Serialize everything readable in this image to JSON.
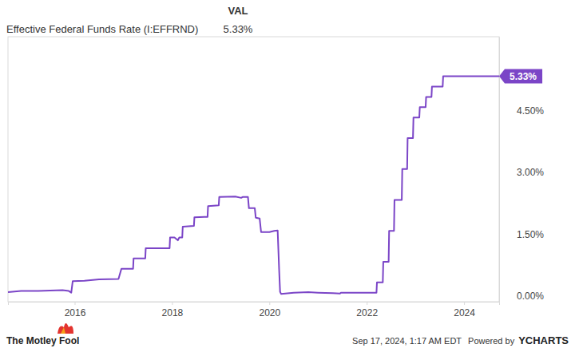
{
  "chart_data": {
    "type": "line",
    "value_header": "VAL",
    "x": [
      2014.63,
      2014.9,
      2015.0,
      2015.25,
      2015.5,
      2015.75,
      2015.88,
      2015.93,
      2015.96,
      2016.2,
      2016.5,
      2016.9,
      2016.96,
      2017.2,
      2017.21,
      2017.45,
      2017.46,
      2017.95,
      2017.96,
      2018.05,
      2018.12,
      2018.15,
      2018.21,
      2018.22,
      2018.45,
      2018.46,
      2018.73,
      2018.74,
      2018.96,
      2018.97,
      2019.3,
      2019.42,
      2019.45,
      2019.56,
      2019.58,
      2019.7,
      2019.72,
      2019.8,
      2019.83,
      2020.0,
      2020.1,
      2020.17,
      2020.2,
      2020.22,
      2020.24,
      2020.5,
      2020.8,
      2021.0,
      2021.3,
      2021.45,
      2021.47,
      2021.7,
      2022.0,
      2022.2,
      2022.21,
      2022.33,
      2022.34,
      2022.45,
      2022.46,
      2022.56,
      2022.57,
      2022.72,
      2022.73,
      2022.83,
      2022.84,
      2022.95,
      2022.96,
      2023.08,
      2023.09,
      2023.21,
      2023.22,
      2023.33,
      2023.34,
      2023.56,
      2023.57,
      2024.72
    ],
    "series": [
      {
        "name": "Effective Federal Funds Rate (I:EFFRND)",
        "color": "#7b45c7",
        "last_value_label": "5.33%",
        "values": [
          0.09,
          0.12,
          0.12,
          0.12,
          0.13,
          0.14,
          0.12,
          0.08,
          0.36,
          0.37,
          0.4,
          0.41,
          0.66,
          0.66,
          0.91,
          0.91,
          1.16,
          1.16,
          1.42,
          1.42,
          1.35,
          1.42,
          1.42,
          1.68,
          1.7,
          1.91,
          1.92,
          2.18,
          2.2,
          2.4,
          2.41,
          2.38,
          2.4,
          2.4,
          2.13,
          2.13,
          1.9,
          1.88,
          1.55,
          1.55,
          1.58,
          1.59,
          0.65,
          0.1,
          0.05,
          0.08,
          0.09,
          0.08,
          0.07,
          0.06,
          0.08,
          0.08,
          0.08,
          0.08,
          0.33,
          0.33,
          0.83,
          0.83,
          1.58,
          1.58,
          2.33,
          2.33,
          3.08,
          3.08,
          3.83,
          3.83,
          4.33,
          4.33,
          4.58,
          4.58,
          4.83,
          4.83,
          5.08,
          5.08,
          5.33,
          5.33
        ]
      }
    ],
    "xlim": [
      2014.63,
      2024.72
    ],
    "xticks": [
      2016,
      2018,
      2020,
      2022,
      2024
    ],
    "ylim": [
      -0.14,
      6.29
    ],
    "yticks": [
      {
        "value": 0,
        "label": "0.00%"
      },
      {
        "value": 1.5,
        "label": "1.50%"
      },
      {
        "value": 3,
        "label": "3.00%"
      },
      {
        "value": 4.5,
        "label": "4.50%"
      }
    ],
    "grid": false,
    "annotations": [
      {
        "x": 2024.72,
        "y": 5.33,
        "text": "5.33%"
      }
    ],
    "source": "The Motley Fool",
    "footer": "Sep 17, 2024, 1:17 AM EDT",
    "credit": "Powered by",
    "brand": "YCHARTS"
  }
}
